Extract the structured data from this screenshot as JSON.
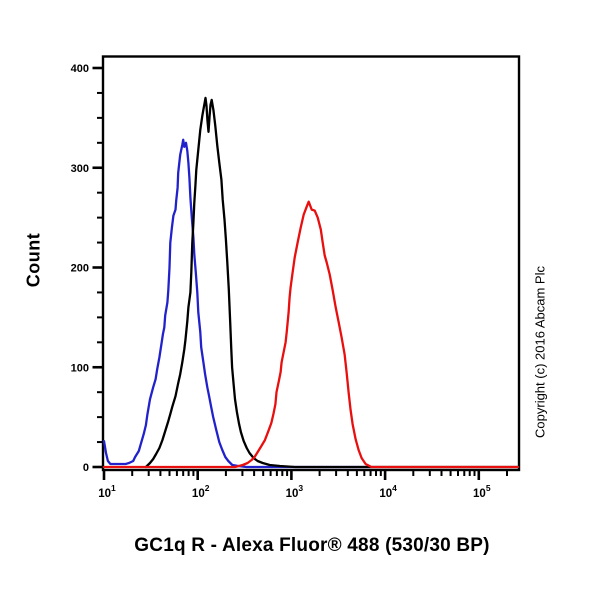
{
  "figure": {
    "title": "GC1q R - Alexa Fluor® 488 (530/30 BP)",
    "ylabel": "Count",
    "copyright": "Copyright (c) 2016 Abcam Plc",
    "background_color": "#ffffff",
    "axis_color": "#000000"
  },
  "chart_data": {
    "type": "line",
    "subtype": "flow-cytometry-histogram",
    "title": "GC1q R - Alexa Fluor® 488 (530/30 BP)",
    "xlabel": "GC1q R - Alexa Fluor® 488 (530/30 BP)",
    "ylabel": "Count",
    "legend": "none",
    "grid": false,
    "x_axis": {
      "scale": "log",
      "min": 10,
      "max": 262144,
      "major_ticks": [
        10,
        100,
        1000,
        10000,
        100000
      ],
      "tick_label_base": "10",
      "tick_label_exponents": [
        1,
        2,
        3,
        4,
        5
      ],
      "minor_ticks_per_decade": [
        2,
        3,
        4,
        5,
        6,
        7,
        8,
        9
      ]
    },
    "y_axis": {
      "scale": "linear",
      "min": 0,
      "max": 400,
      "major_ticks": [
        0,
        100,
        200,
        300,
        400
      ],
      "minor_tick_interval": 25
    },
    "series": [
      {
        "name": "blue",
        "color": "#2222cc",
        "peak": {
          "x": 70,
          "count": 328
        },
        "points": [
          [
            10,
            26
          ],
          [
            10.5,
            14
          ],
          [
            11,
            6
          ],
          [
            11.7,
            3
          ],
          [
            13,
            3
          ],
          [
            15,
            3
          ],
          [
            17,
            3
          ],
          [
            18.5,
            4
          ],
          [
            20.5,
            6
          ],
          [
            21.5,
            10
          ],
          [
            23.5,
            16
          ],
          [
            24.5,
            22
          ],
          [
            26.5,
            33
          ],
          [
            28,
            42
          ],
          [
            29,
            52
          ],
          [
            31,
            68
          ],
          [
            33.5,
            80
          ],
          [
            35.5,
            88
          ],
          [
            37,
            98
          ],
          [
            39,
            110
          ],
          [
            41,
            123
          ],
          [
            42.5,
            133
          ],
          [
            44,
            140
          ],
          [
            45,
            152
          ],
          [
            47.5,
            165
          ],
          [
            48.5,
            177
          ],
          [
            50,
            200
          ],
          [
            51,
            225
          ],
          [
            53,
            240
          ],
          [
            55,
            252
          ],
          [
            58,
            258
          ],
          [
            59,
            267
          ],
          [
            61,
            280
          ],
          [
            62,
            295
          ],
          [
            65,
            313
          ],
          [
            68.5,
            323
          ],
          [
            70,
            328
          ],
          [
            72,
            321
          ],
          [
            75,
            325
          ],
          [
            77.5,
            317
          ],
          [
            79.5,
            305
          ],
          [
            81.5,
            290
          ],
          [
            83.5,
            270
          ],
          [
            86.5,
            250
          ],
          [
            90,
            230
          ],
          [
            92,
            213
          ],
          [
            95.5,
            195
          ],
          [
            99,
            175
          ],
          [
            101.5,
            155
          ],
          [
            106.5,
            135
          ],
          [
            109,
            120
          ],
          [
            115,
            105
          ],
          [
            120,
            93
          ],
          [
            126.5,
            80
          ],
          [
            133,
            70
          ],
          [
            139.5,
            60
          ],
          [
            146.5,
            50
          ],
          [
            158,
            37
          ],
          [
            170,
            25
          ],
          [
            183,
            17
          ],
          [
            197,
            10
          ],
          [
            212,
            6
          ],
          [
            234,
            2
          ],
          [
            272,
            1
          ],
          [
            330,
            0
          ],
          [
            7000,
            0
          ]
        ]
      },
      {
        "name": "black",
        "color": "#000000",
        "peak": {
          "x": 121,
          "count": 370
        },
        "points": [
          [
            28,
            0
          ],
          [
            31,
            4
          ],
          [
            33.5,
            8
          ],
          [
            36,
            13
          ],
          [
            39,
            19
          ],
          [
            42,
            27
          ],
          [
            45,
            36
          ],
          [
            48.5,
            46
          ],
          [
            51,
            53
          ],
          [
            53.5,
            60
          ],
          [
            58,
            71
          ],
          [
            62,
            84
          ],
          [
            65,
            93
          ],
          [
            68.5,
            105
          ],
          [
            72,
            118
          ],
          [
            74,
            127
          ],
          [
            77.5,
            146
          ],
          [
            79.5,
            160
          ],
          [
            83.5,
            175
          ],
          [
            85.5,
            195
          ],
          [
            87.5,
            225
          ],
          [
            90,
            245
          ],
          [
            92,
            265
          ],
          [
            94.5,
            282
          ],
          [
            96.5,
            298
          ],
          [
            99,
            308
          ],
          [
            101.5,
            318
          ],
          [
            104,
            328
          ],
          [
            106.5,
            338
          ],
          [
            112,
            352
          ],
          [
            116,
            360
          ],
          [
            119,
            366
          ],
          [
            121,
            370
          ],
          [
            124,
            362
          ],
          [
            127,
            348
          ],
          [
            130.5,
            336
          ],
          [
            134,
            352
          ],
          [
            137,
            363
          ],
          [
            141,
            368
          ],
          [
            147,
            358
          ],
          [
            154,
            342
          ],
          [
            162,
            322
          ],
          [
            170,
            305
          ],
          [
            179,
            288
          ],
          [
            185,
            268
          ],
          [
            193,
            248
          ],
          [
            200,
            228
          ],
          [
            207,
            205
          ],
          [
            215,
            178
          ],
          [
            222,
            145
          ],
          [
            228,
            120
          ],
          [
            233,
            100
          ],
          [
            242,
            82
          ],
          [
            250,
            68
          ],
          [
            262,
            55
          ],
          [
            275,
            44
          ],
          [
            289,
            35
          ],
          [
            310,
            26
          ],
          [
            333,
            19
          ],
          [
            357,
            14
          ],
          [
            395,
            9
          ],
          [
            436,
            6
          ],
          [
            494,
            4
          ],
          [
            587,
            2
          ],
          [
            754,
            1
          ],
          [
            1090,
            0
          ],
          [
            10000,
            0
          ],
          [
            260000,
            0
          ]
        ]
      },
      {
        "name": "red",
        "color": "#e90f0f",
        "peak": {
          "x": 1530,
          "count": 266
        },
        "points": [
          [
            10,
            0
          ],
          [
            100,
            0
          ],
          [
            250,
            0
          ],
          [
            302,
            2
          ],
          [
            341,
            4
          ],
          [
            376,
            7
          ],
          [
            405,
            10
          ],
          [
            437,
            15
          ],
          [
            470,
            20
          ],
          [
            522,
            27
          ],
          [
            563,
            35
          ],
          [
            610,
            44
          ],
          [
            642,
            53
          ],
          [
            675,
            63
          ],
          [
            693,
            75
          ],
          [
            730,
            85
          ],
          [
            767,
            95
          ],
          [
            786,
            105
          ],
          [
            826,
            115
          ],
          [
            868,
            125
          ],
          [
            890,
            135
          ],
          [
            934,
            155
          ],
          [
            957,
            170
          ],
          [
            981,
            180
          ],
          [
            1031,
            195
          ],
          [
            1084,
            210
          ],
          [
            1166,
            225
          ],
          [
            1256,
            240
          ],
          [
            1353,
            253
          ],
          [
            1458,
            261
          ],
          [
            1530,
            266
          ],
          [
            1645,
            258
          ],
          [
            1773,
            257
          ],
          [
            1910,
            250
          ],
          [
            2057,
            238
          ],
          [
            2160,
            225
          ],
          [
            2268,
            212
          ],
          [
            2382,
            205
          ],
          [
            2563,
            193
          ],
          [
            2758,
            177
          ],
          [
            2968,
            160
          ],
          [
            3194,
            145
          ],
          [
            3437,
            130
          ],
          [
            3699,
            113
          ],
          [
            3885,
            95
          ],
          [
            4080,
            75
          ],
          [
            4285,
            57
          ],
          [
            4500,
            43
          ],
          [
            4843,
            28
          ],
          [
            5212,
            17
          ],
          [
            5609,
            9
          ],
          [
            6187,
            3
          ],
          [
            7146,
            0
          ],
          [
            20000,
            0
          ],
          [
            262144,
            0
          ]
        ]
      }
    ]
  }
}
